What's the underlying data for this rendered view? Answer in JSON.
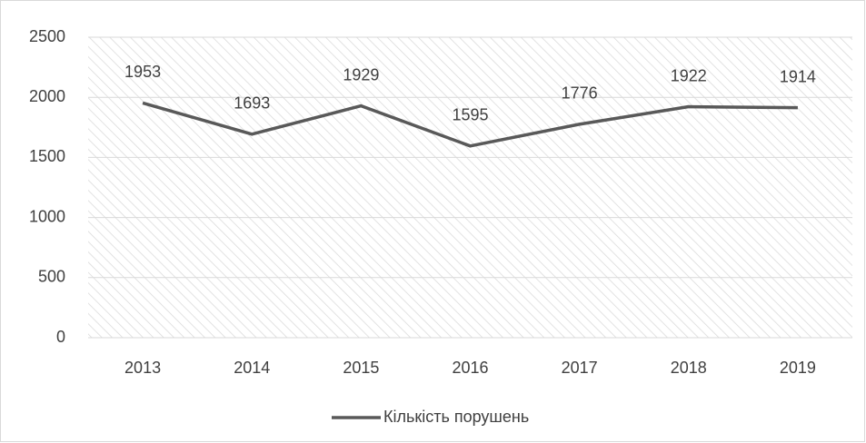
{
  "chart_data": {
    "type": "line",
    "categories": [
      "2013",
      "2014",
      "2015",
      "2016",
      "2017",
      "2018",
      "2019"
    ],
    "series": [
      {
        "name": "Кількість порушень",
        "color": "#595959",
        "values": [
          1953,
          1693,
          1929,
          1595,
          1776,
          1922,
          1914
        ]
      }
    ],
    "ylim": [
      0,
      2500
    ],
    "yticks": [
      0,
      500,
      1000,
      1500,
      2000,
      2500
    ],
    "grid": true,
    "legend": "bottom"
  }
}
